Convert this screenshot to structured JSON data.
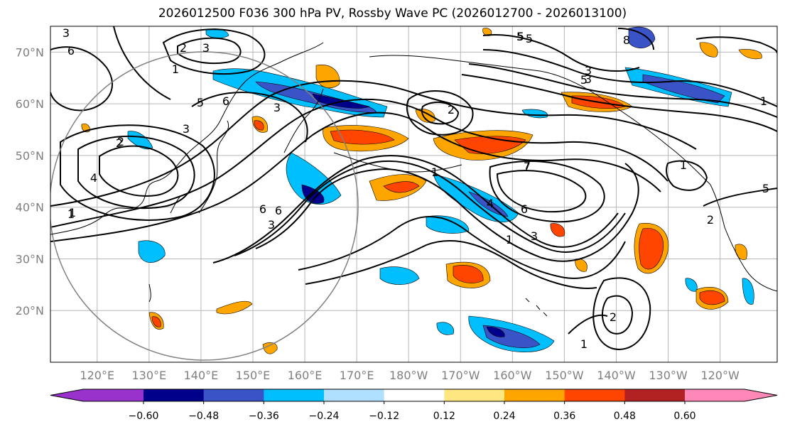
{
  "chart_data": {
    "type": "map",
    "title": "2026012500 F036 300 hPa PV, Rossby Wave PC (2026012700 - 2026013100)",
    "lat_ticks": [
      "70°N",
      "60°N",
      "50°N",
      "40°N",
      "30°N",
      "20°N"
    ],
    "lon_ticks": [
      "120°E",
      "130°E",
      "140°E",
      "150°E",
      "160°E",
      "170°E",
      "180°W",
      "170°W",
      "160°W",
      "150°W",
      "140°W",
      "130°W",
      "120°W"
    ],
    "lat_range": [
      10,
      75
    ],
    "lon_range": [
      111,
      251
    ],
    "contour_labels": [
      "3",
      "6",
      "2",
      "3",
      "1",
      "5",
      "6",
      "3",
      "5",
      "3",
      "7",
      "6",
      "8",
      "5",
      "3",
      "1",
      "2",
      "1",
      "2",
      "1",
      "2",
      "1",
      "5",
      "7",
      "3",
      "1",
      "2",
      "4",
      "3",
      "5",
      "6",
      "1",
      "3",
      "2",
      "1",
      "6",
      "4",
      "5"
    ],
    "colorbar": {
      "ticks": [
        "−0.60",
        "−0.48",
        "−0.36",
        "−0.24",
        "−0.12",
        "0.12",
        "0.24",
        "0.36",
        "0.48",
        "0.60"
      ],
      "bounds": [
        -0.72,
        -0.6,
        -0.48,
        -0.36,
        -0.24,
        -0.12,
        0.12,
        0.24,
        0.36,
        0.48,
        0.6,
        0.72
      ],
      "colors": [
        "#9932cc",
        "#00008b",
        "#3a54c8",
        "#00bfff",
        "#b0e0ff",
        "#ffffff",
        "#ffe680",
        "#ffa500",
        "#ff4500",
        "#b22222",
        "#ff88b8"
      ],
      "extend": "both"
    }
  }
}
